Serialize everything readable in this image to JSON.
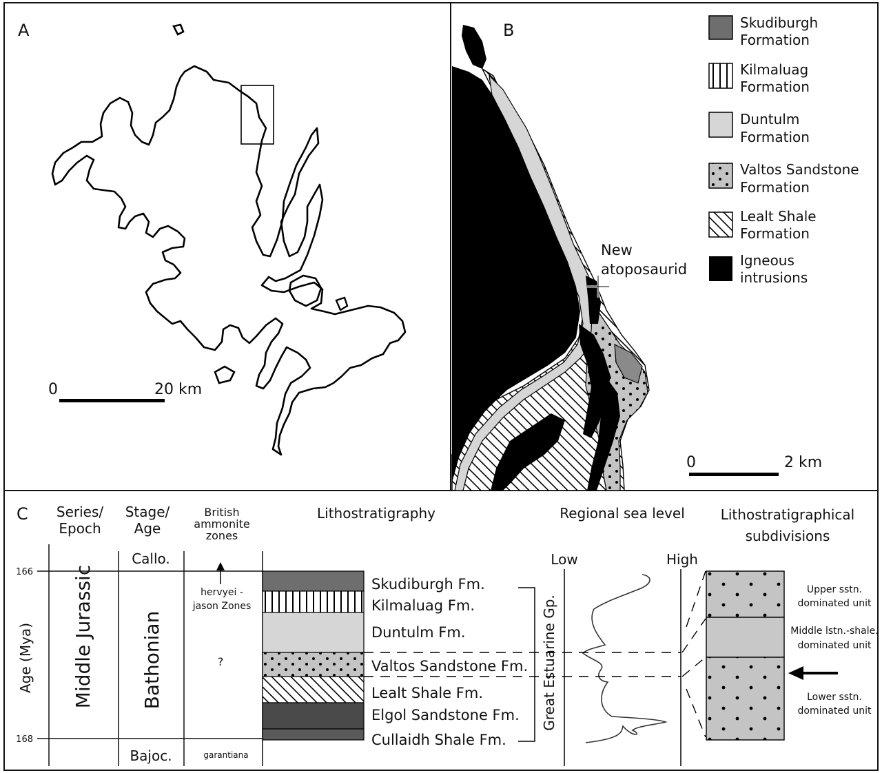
{
  "panel_a": {
    "label": "A",
    "scale_start": "0",
    "scale_end": "20 km"
  },
  "panel_b": {
    "label": "B",
    "scale_start": "0",
    "scale_end": "2 km",
    "annotation_line1": "New",
    "annotation_line2": "atoposaurid",
    "legend": [
      {
        "line1": "Skudiburgh",
        "line2": "Formation",
        "pattern": "dark-grey"
      },
      {
        "line1": "Kilmaluag",
        "line2": "Formation",
        "pattern": "vertical-lines"
      },
      {
        "line1": "Duntulm",
        "line2": "Formation",
        "pattern": "light-grey"
      },
      {
        "line1": "Valtos Sandstone",
        "line2": "Formation",
        "pattern": "dotted-grey"
      },
      {
        "line1": "Lealt Shale",
        "line2": "Formation",
        "pattern": "diagonal-lines"
      },
      {
        "line1": "Igneous",
        "line2": "intrusions",
        "pattern": "black"
      }
    ]
  },
  "panel_c": {
    "label": "C",
    "headers": {
      "series_1": "Series/",
      "series_2": "Epoch",
      "stage_1": "Stage/",
      "stage_2": "Age",
      "zones_1": "British",
      "zones_2": "ammonite",
      "zones_3": "zones",
      "litho": "Lithostratigraphy",
      "sealevel": "Regional sea level",
      "subdiv_1": "Lithostratigraphical",
      "subdiv_2": "subdivisions"
    },
    "age_axis_label": "Age (Mya)",
    "age_ticks": [
      "166",
      "168"
    ],
    "series": "Middle Jurassic",
    "stages": {
      "upper": "Callo.",
      "main": "Bathonian",
      "lower": "Bajoc."
    },
    "zones": {
      "upper_1": "hervyei -",
      "upper_2": "jason Zones",
      "middle": "?",
      "lower": "garantiana"
    },
    "formations": [
      "Skudiburgh Fm.",
      "Kilmaluag Fm.",
      "Duntulm Fm.",
      "Valtos Sandstone Fm.",
      "Lealt Shale Fm.",
      "Elgol Sandstone Fm.",
      "Cullaidh Shale Fm."
    ],
    "group": "Great Estuarine Gp.",
    "sea_level_low": "Low",
    "sea_level_high": "High",
    "units": [
      {
        "line1": "Upper sstn.",
        "line2": "dominated unit"
      },
      {
        "line1": "Middle lstn.-shale.",
        "line2": "dominated unit"
      },
      {
        "line1": "Lower sstn.",
        "line2": "dominated unit"
      }
    ]
  },
  "colors": {
    "skudiburgh": "#6e6e6e",
    "duntulm": "#d6d6d6",
    "valtos": "#c4c4c4",
    "dark_bed": "#4a4a4a",
    "igneous": "#000000",
    "border": "#111111"
  }
}
